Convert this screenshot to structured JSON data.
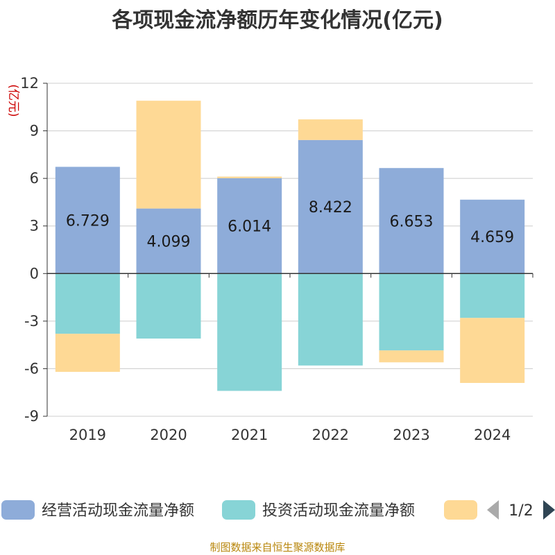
{
  "title": "各项现金流净额历年变化情况(亿元)",
  "source_note": "制图数据来自恒生聚源数据库",
  "legend_page": "1/2",
  "colors": {
    "operating": "#8eacd9",
    "investing": "#87d4d6",
    "financing": "#fed995",
    "grid": "#cccccc",
    "axis": "#333333",
    "unit": "#cc0000",
    "nav_prev": "#aaaaaa",
    "nav_next": "#2f4554"
  },
  "chart_data": {
    "type": "bar",
    "stacked": true,
    "ylabel": "(亿元)",
    "ylim": [
      -9,
      12
    ],
    "yticks": [
      -9,
      -6,
      -3,
      0,
      3,
      6,
      9,
      12
    ],
    "ytick_labels": [
      "-9",
      "-6",
      "-3",
      "0",
      "3",
      "6",
      "9",
      "12"
    ],
    "grid": true,
    "legend_position": "bottom",
    "categories": [
      "2019",
      "2020",
      "2021",
      "2022",
      "2023",
      "2024"
    ],
    "series": [
      {
        "name": "经营活动现金流量净额",
        "values": [
          6.729,
          4.099,
          6.014,
          8.422,
          6.653,
          4.659
        ],
        "data_labels": [
          "6.729",
          "4.099",
          "6.014",
          "8.422",
          "6.653",
          "4.659"
        ]
      },
      {
        "name": "投资活动现金流量净额",
        "values": [
          -3.8,
          -4.1,
          -7.4,
          -5.8,
          -4.85,
          -2.8
        ]
      },
      {
        "name": "",
        "values": [
          -2.4,
          6.8,
          0.1,
          1.3,
          -0.75,
          -4.1
        ]
      }
    ]
  }
}
